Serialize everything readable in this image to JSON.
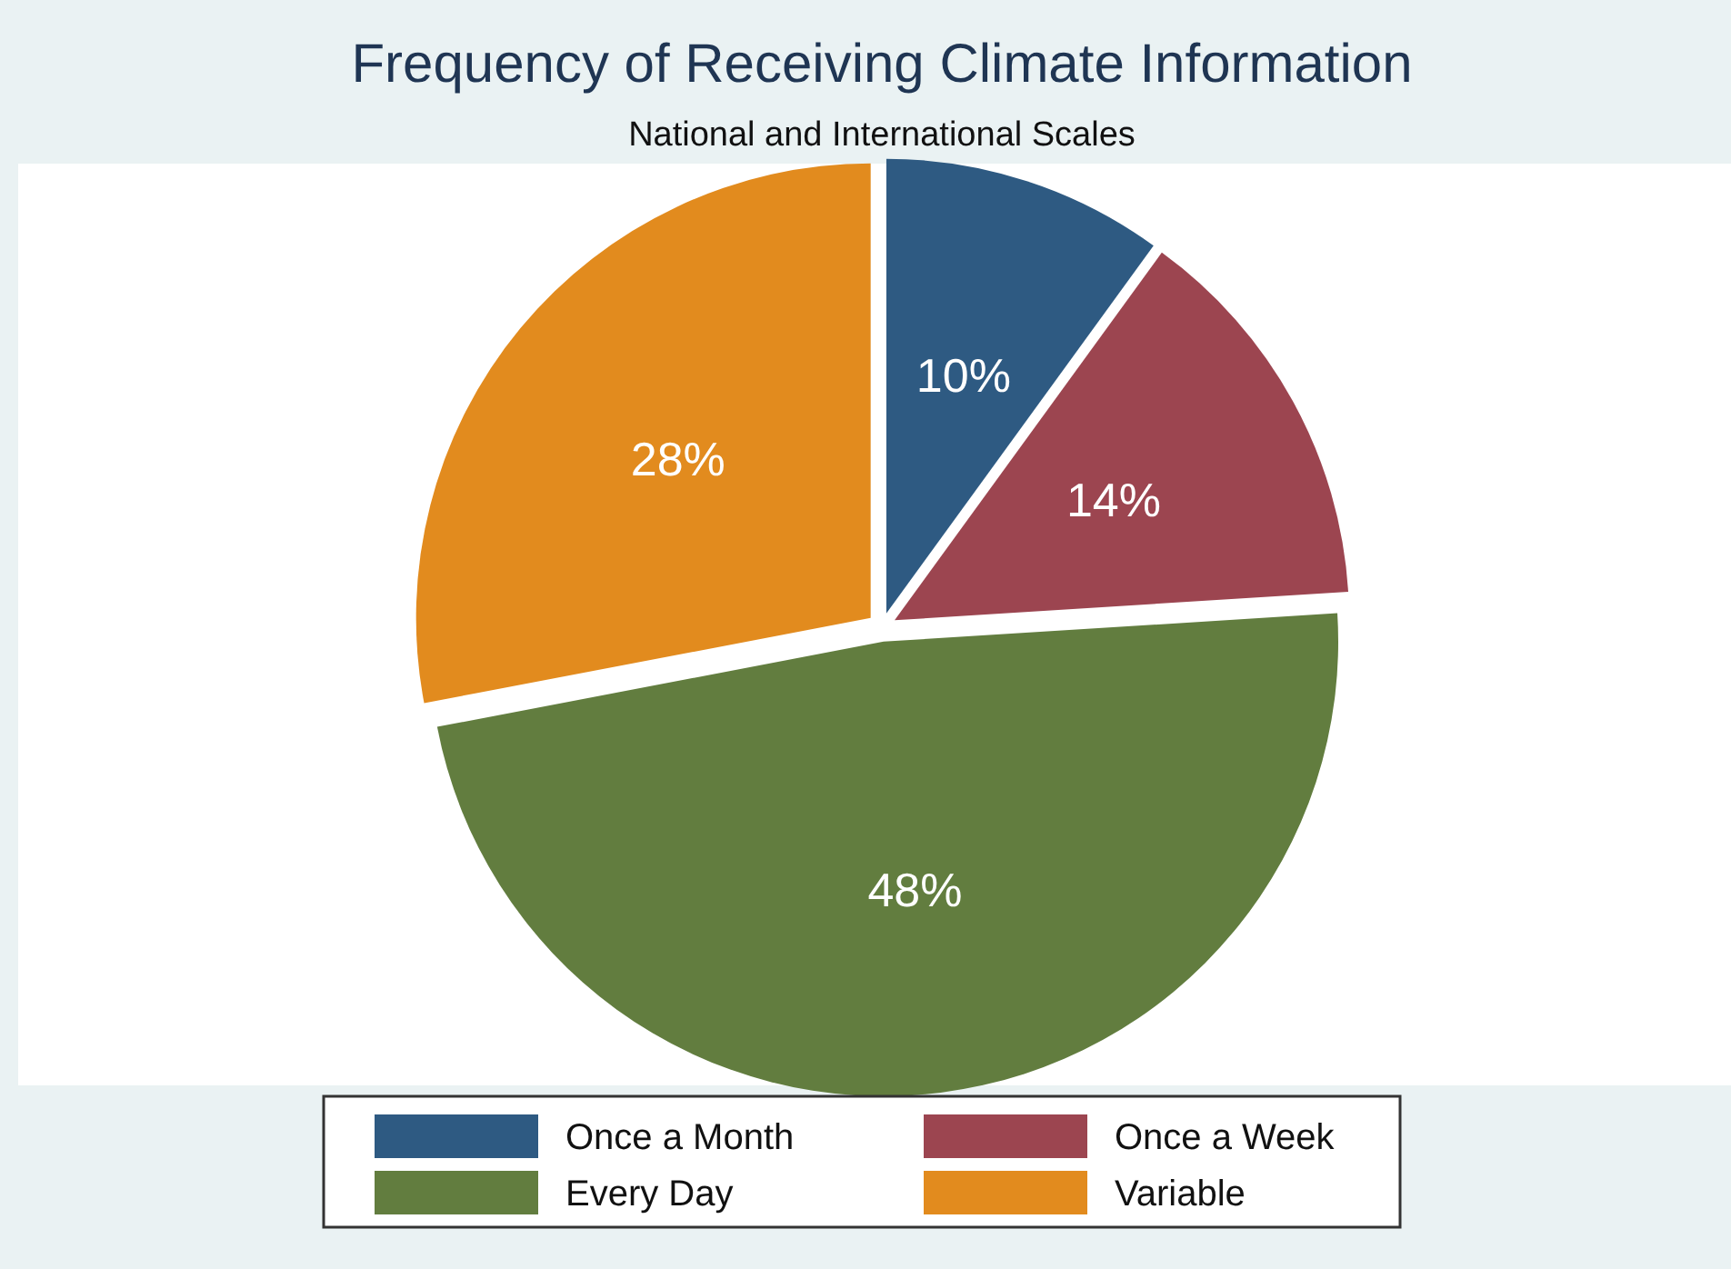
{
  "chart_data": {
    "type": "pie",
    "title": "Frequency of Receiving Climate Information",
    "subtitle": "National and International Scales",
    "categories": [
      "Once a Month",
      "Once a Week",
      "Every Day",
      "Variable"
    ],
    "values": [
      10,
      14,
      48,
      28
    ],
    "value_labels": [
      "10%",
      "14%",
      "48%",
      "28%"
    ],
    "colors": [
      "#2e5a82",
      "#9c4550",
      "#627d3f",
      "#e28b1e"
    ],
    "legend": "bottom"
  }
}
